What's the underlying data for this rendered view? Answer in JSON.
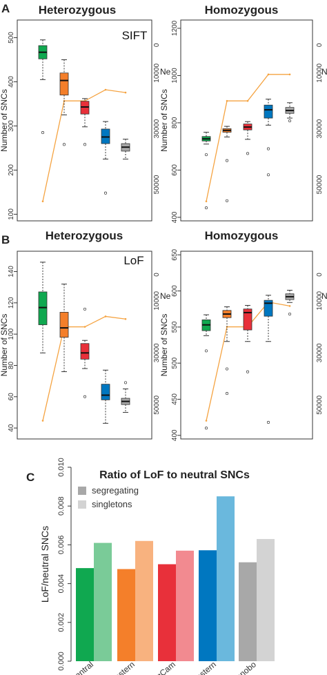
{
  "panel_labels": [
    "A",
    "B",
    "C"
  ],
  "colors": {
    "central": "#10a850",
    "eastern": "#f47f2a",
    "nigcam": "#e8303a",
    "western": "#0077c0",
    "bonobo": "#a8a8a8",
    "central_light": "#7acb98",
    "eastern_light": "#f8b27f",
    "nigcam_light": "#f28a90",
    "western_light": "#6ab8dd",
    "bonobo_light": "#d3d3d3",
    "ne_line": "#f5a341"
  },
  "chart_data": [
    {
      "id": "A-het",
      "type": "boxplot",
      "title": "Heterozygous",
      "tag": "SIFT",
      "ylabel": "Number of SNCs",
      "ylim": [
        85,
        540
      ],
      "yticks": [
        100,
        200,
        300,
        400,
        500
      ],
      "ne_label": "Ne",
      "ne_lim": [
        63000,
        -9000
      ],
      "ne_ticks": [
        0,
        10000,
        30000,
        50000
      ],
      "boxes": [
        {
          "q1": 452,
          "median": 467,
          "q3": 482,
          "wlo": 405,
          "whi": 495,
          "out": [
            285
          ]
        },
        {
          "q1": 370,
          "median": 403,
          "q3": 420,
          "wlo": 325,
          "whi": 450,
          "out": [
            258
          ]
        },
        {
          "q1": 327,
          "median": 343,
          "q3": 356,
          "wlo": 298,
          "whi": 362,
          "out": [
            258
          ]
        },
        {
          "q1": 260,
          "median": 275,
          "q3": 293,
          "wlo": 225,
          "whi": 310,
          "out": [
            148
          ]
        },
        {
          "q1": 243,
          "median": 252,
          "q3": 260,
          "wlo": 225,
          "whi": 270,
          "out": []
        }
      ],
      "ne": [
        56000,
        20000,
        20000,
        16000,
        17000
      ]
    },
    {
      "id": "A-hom",
      "type": "boxplot",
      "title": "Homozygous",
      "tag": "",
      "ylabel": "Number of SNCs",
      "ylim": [
        385,
        1235
      ],
      "yticks": [
        400,
        600,
        800,
        1000,
        1200
      ],
      "ne_label": "Ne",
      "ne_lim": [
        63000,
        -9000
      ],
      "ne_ticks": [
        0,
        10000,
        30000,
        50000
      ],
      "boxes": [
        {
          "q1": 723,
          "median": 732,
          "q3": 742,
          "wlo": 710,
          "whi": 760,
          "out": [
            665,
            440
          ]
        },
        {
          "q1": 760,
          "median": 768,
          "q3": 775,
          "wlo": 740,
          "whi": 785,
          "out": [
            640,
            470
          ]
        },
        {
          "q1": 770,
          "median": 782,
          "q3": 795,
          "wlo": 730,
          "whi": 805,
          "out": [
            670
          ]
        },
        {
          "q1": 820,
          "median": 855,
          "q3": 875,
          "wlo": 790,
          "whi": 900,
          "out": [
            690,
            580
          ]
        },
        {
          "q1": 840,
          "median": 852,
          "q3": 865,
          "wlo": 820,
          "whi": 885,
          "out": [
            808
          ]
        }
      ],
      "ne": [
        56000,
        20000,
        20000,
        10500,
        10500
      ]
    },
    {
      "id": "B-het",
      "type": "boxplot",
      "title": "Heterozygous",
      "tag": "LoF",
      "ylabel": "Number of SNCs",
      "ylim": [
        33,
        153
      ],
      "yticks": [
        40,
        60,
        80,
        100,
        120,
        140
      ],
      "ne_label": "Ne",
      "ne_lim": [
        63000,
        -9000
      ],
      "ne_ticks": [
        0,
        10000,
        30000,
        50000
      ],
      "boxes": [
        {
          "q1": 106,
          "median": 117,
          "q3": 127,
          "wlo": 88,
          "whi": 146,
          "out": []
        },
        {
          "q1": 98,
          "median": 104,
          "q3": 114,
          "wlo": 76,
          "whi": 132,
          "out": []
        },
        {
          "q1": 84,
          "median": 88,
          "q3": 94,
          "wlo": 78,
          "whi": 96,
          "out": [
            116,
            60
          ]
        },
        {
          "q1": 58,
          "median": 61,
          "q3": 68,
          "wlo": 43,
          "whi": 77,
          "out": []
        },
        {
          "q1": 55,
          "median": 57,
          "q3": 59,
          "wlo": 50,
          "whi": 65,
          "out": [
            69
          ]
        }
      ],
      "ne": [
        56000,
        20000,
        20000,
        16000,
        17000
      ]
    },
    {
      "id": "B-hom",
      "type": "boxplot",
      "title": "Homozygous",
      "tag": "",
      "ylabel": "Number of SNCs",
      "ylim": [
        395,
        655
      ],
      "yticks": [
        400,
        450,
        500,
        550,
        600,
        650
      ],
      "ne_label": "Ne",
      "ne_lim": [
        63000,
        -9000
      ],
      "ne_ticks": [
        0,
        10000,
        30000,
        50000
      ],
      "boxes": [
        {
          "q1": 545,
          "median": 553,
          "q3": 560,
          "wlo": 538,
          "whi": 567,
          "out": [
            517,
            410
          ]
        },
        {
          "q1": 563,
          "median": 568,
          "q3": 573,
          "wlo": 530,
          "whi": 578,
          "out": [
            492,
            458
          ]
        },
        {
          "q1": 546,
          "median": 570,
          "q3": 575,
          "wlo": 530,
          "whi": 580,
          "out": [
            488
          ]
        },
        {
          "q1": 565,
          "median": 583,
          "q3": 587,
          "wlo": 530,
          "whi": 594,
          "out": [
            418
          ]
        },
        {
          "q1": 588,
          "median": 592,
          "q3": 596,
          "wlo": 584,
          "whi": 601,
          "out": [
            568
          ]
        }
      ],
      "ne": [
        56000,
        20000,
        20000,
        10500,
        12000
      ]
    },
    {
      "id": "C",
      "type": "bar",
      "title": "Ratio of LoF to neutral SNCs",
      "ylabel": "LoF/neutral SNCs",
      "ylim": [
        0,
        0.01
      ],
      "yticks": [
        "0.000",
        "0.002",
        "0.004",
        "0.006",
        "0.008",
        "0.010"
      ],
      "categories": [
        "Central",
        "Eastern",
        "NigCam",
        "Western",
        "Bonobo"
      ],
      "legend": [
        {
          "label": "segregating",
          "color": "#a8a8a8"
        },
        {
          "label": "singletons",
          "color": "#d3d3d3"
        }
      ],
      "series": [
        {
          "name": "segregating",
          "values": [
            0.0048,
            0.00475,
            0.005,
            0.00572,
            0.0051
          ]
        },
        {
          "name": "singletons",
          "values": [
            0.0061,
            0.0062,
            0.0057,
            0.0085,
            0.0063
          ]
        }
      ]
    }
  ]
}
